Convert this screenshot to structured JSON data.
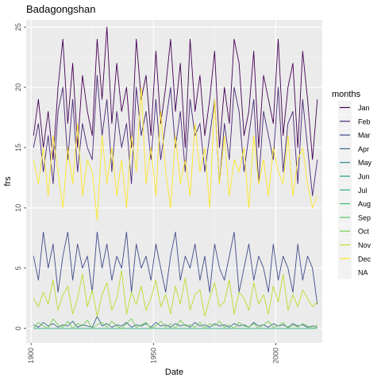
{
  "chart_data": {
    "type": "line",
    "title": "Badagongshan",
    "xlabel": "Date",
    "ylabel": "frs",
    "xlim": [
      1898,
      2019
    ],
    "ylim": [
      -1.2,
      25.6
    ],
    "x_ticks": [
      1900,
      1950,
      2000
    ],
    "x_tick_labels": [
      "1900",
      "1950",
      "2000"
    ],
    "y_ticks": [
      0,
      5,
      10,
      15,
      20,
      25
    ],
    "y_tick_labels": [
      "0",
      "5",
      "10",
      "15",
      "20",
      "25"
    ],
    "x": [
      1901,
      1903,
      1905,
      1907,
      1909,
      1911,
      1913,
      1915,
      1917,
      1919,
      1921,
      1923,
      1925,
      1927,
      1929,
      1931,
      1933,
      1935,
      1937,
      1939,
      1941,
      1943,
      1945,
      1947,
      1949,
      1951,
      1953,
      1955,
      1957,
      1959,
      1961,
      1963,
      1965,
      1967,
      1969,
      1971,
      1973,
      1975,
      1977,
      1979,
      1981,
      1983,
      1985,
      1987,
      1989,
      1991,
      1993,
      1995,
      1997,
      1999,
      2001,
      2003,
      2005,
      2007,
      2009,
      2011,
      2013,
      2015,
      2017
    ],
    "grid": true,
    "legend": {
      "title": "months",
      "position": "right",
      "items": [
        {
          "label": "Jan",
          "color": "#440154"
        },
        {
          "label": "Feb",
          "color": "#482677"
        },
        {
          "label": "Mar",
          "color": "#3f4a8a"
        },
        {
          "label": "Apr",
          "color": "#31688e"
        },
        {
          "label": "May",
          "color": "#26838f"
        },
        {
          "label": "Jun",
          "color": "#1f9d8a"
        },
        {
          "label": "Jul",
          "color": "#29af7f"
        },
        {
          "label": "Aug",
          "color": "#3cbc75"
        },
        {
          "label": "Sep",
          "color": "#56c667"
        },
        {
          "label": "Oct",
          "color": "#75d054"
        },
        {
          "label": "Nov",
          "color": "#b8de29"
        },
        {
          "label": "Dec",
          "color": "#fde725"
        },
        {
          "label": "NA",
          "color": "#f2f2f2"
        }
      ]
    },
    "series": [
      {
        "name": "Jan",
        "color": "#440154",
        "values": [
          16,
          19,
          15,
          18,
          14,
          20,
          24,
          17,
          22,
          15,
          21,
          18,
          16,
          24,
          19,
          25,
          17,
          22,
          18,
          20,
          15,
          24,
          19,
          21,
          16,
          23,
          17,
          20,
          24,
          18,
          22,
          15,
          24,
          18,
          21,
          16,
          19,
          23,
          15,
          20,
          17,
          24,
          22,
          16,
          18,
          23,
          15,
          21,
          19,
          17,
          24,
          16,
          20,
          22,
          15,
          23,
          19,
          14,
          19
        ]
      },
      {
        "name": "Feb",
        "color": "#482677",
        "values": [
          15,
          17,
          13,
          16,
          12,
          18,
          20,
          14,
          19,
          13,
          17,
          15,
          14,
          21,
          16,
          19,
          13,
          18,
          15,
          17,
          12,
          20,
          16,
          18,
          14,
          19,
          14,
          17,
          20,
          15,
          18,
          13,
          19,
          16,
          17,
          13,
          16,
          19,
          12,
          17,
          14,
          20,
          18,
          13,
          16,
          19,
          12,
          18,
          16,
          14,
          20,
          13,
          17,
          18,
          12,
          19,
          15,
          11,
          14
        ]
      },
      {
        "name": "Mar",
        "color": "#3f4a8a",
        "values": [
          6,
          4,
          8,
          5,
          7,
          3,
          6,
          8,
          4,
          7,
          5,
          6,
          3,
          8,
          5,
          7,
          4,
          6,
          5,
          8,
          3,
          7,
          5,
          6,
          4,
          7,
          5,
          3,
          6,
          8,
          4,
          6,
          5,
          7,
          4,
          6,
          3,
          7,
          5,
          4,
          6,
          8,
          3,
          5,
          7,
          4,
          6,
          5,
          3,
          7,
          4,
          6,
          5,
          3,
          7,
          4,
          6,
          5,
          2
        ]
      },
      {
        "name": "Apr",
        "color": "#31688e",
        "values": [
          0.3,
          0.1,
          0.5,
          0.2,
          0.4,
          0.1,
          0.3,
          0.2,
          0.6,
          0.1,
          0.3,
          0.2,
          0.1,
          1.0,
          0.2,
          0.4,
          0.1,
          0.3,
          0.2,
          0.5,
          0.1,
          0.3,
          0.2,
          0.4,
          0.1,
          0.5,
          0.2,
          0.3,
          0.1,
          0.4,
          0.2,
          0.3,
          0.1,
          0.5,
          0.2,
          0.3,
          0.1,
          0.4,
          0.2,
          0.3,
          0.1,
          0.4,
          0.2,
          0.3,
          0.1,
          0.5,
          0.2,
          0.3,
          0.1,
          0.4,
          0.2,
          0.3,
          0.1,
          0.4,
          0.2,
          0.3,
          0.1,
          0.2,
          0.1
        ]
      },
      {
        "name": "Jul",
        "color": "#29af7f",
        "values": [
          0,
          0,
          0,
          0,
          0,
          0,
          0,
          0,
          0,
          0,
          0,
          0,
          0,
          0,
          0,
          0,
          0,
          0,
          0,
          0,
          0,
          0,
          0,
          0,
          0,
          0,
          0,
          0,
          0,
          0,
          0,
          0,
          0,
          0,
          0,
          0,
          0,
          0,
          0,
          0,
          0,
          0,
          0,
          0,
          0,
          0,
          0,
          0,
          0,
          0,
          0,
          0,
          0,
          0,
          0,
          0,
          0,
          0,
          0
        ]
      },
      {
        "name": "Oct",
        "color": "#75d054",
        "values": [
          0,
          0.5,
          0.2,
          0,
          0.8,
          0.3,
          0.1,
          0.6,
          0,
          0.4,
          0.2,
          0.7,
          0,
          0.3,
          0.5,
          0.1,
          0.6,
          0.2,
          0,
          0.4,
          0.8,
          0.1,
          0.3,
          0.5,
          0,
          0.2,
          0.6,
          0.1,
          0.4,
          0,
          0.7,
          0.2,
          0.3,
          0.1,
          0.5,
          0,
          0.4,
          0.2,
          0.6,
          0.1,
          0.3,
          0,
          0.5,
          0.2,
          0.1,
          0.4,
          0,
          0.3,
          0.6,
          0.1,
          0.2,
          0.5,
          0,
          0.3,
          0.1,
          0.4,
          0.2,
          0,
          0.3
        ]
      },
      {
        "name": "Nov",
        "color": "#b8de29",
        "values": [
          2.5,
          1.8,
          3,
          2,
          4,
          1.5,
          2.8,
          3.5,
          1.2,
          2.5,
          4.5,
          1.8,
          3.2,
          1,
          2.8,
          3.8,
          1.5,
          2.5,
          4.8,
          1.2,
          3,
          2,
          3.5,
          1.5,
          2.5,
          4,
          1.8,
          2.8,
          1.2,
          3.5,
          2,
          4.2,
          1.5,
          2.8,
          3.2,
          1,
          2.5,
          3.8,
          1.8,
          2.2,
          4,
          1.2,
          3,
          2.5,
          1.5,
          3.8,
          2,
          2.8,
          1.2,
          3.5,
          2.2,
          4.5,
          1.5,
          2.8,
          1.8,
          3.2,
          2.5,
          1.8,
          2.2
        ]
      },
      {
        "name": "Dec",
        "color": "#fde725",
        "values": [
          14,
          12,
          15,
          11,
          16,
          13,
          10,
          15,
          12,
          17,
          11,
          14,
          13,
          9,
          16,
          12,
          15,
          11,
          14,
          10,
          16,
          13,
          20,
          12,
          15,
          11,
          18,
          13,
          10,
          16,
          12,
          14,
          11,
          17,
          13,
          15,
          10,
          19,
          12,
          16,
          11,
          14,
          13,
          15,
          10,
          16,
          12,
          14,
          11,
          15,
          13,
          12,
          16,
          11,
          14,
          15,
          12,
          10,
          11
        ]
      }
    ]
  }
}
